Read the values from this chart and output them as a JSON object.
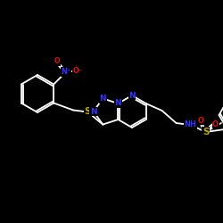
{
  "bg_color": "#000000",
  "bond_color": "#ffffff",
  "bond_width": 1.3,
  "atom_colors": {
    "N": "#3333ff",
    "O": "#dd1111",
    "S": "#bbaa00"
  },
  "font_size": 6.5,
  "fig_width": 2.5,
  "fig_height": 2.5,
  "dpi": 100,
  "xlim": [
    0,
    250
  ],
  "ylim": [
    0,
    250
  ]
}
